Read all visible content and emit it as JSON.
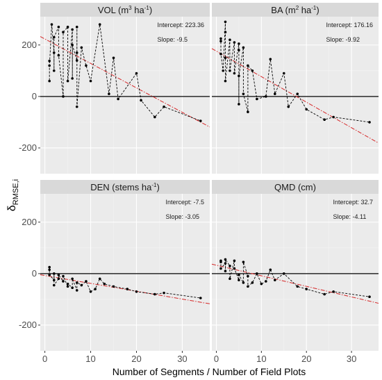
{
  "colors": {
    "panel_background": "#ebebeb",
    "strip_background": "#d9d9d9",
    "grid_major": "#ffffff",
    "grid_minor": "#f4f4f4",
    "data_points": "#000000",
    "data_line": "#000000",
    "reference_line": "#000000",
    "trend_line": "#d62728"
  },
  "axes": {
    "xlabel": "Number of Segments / Number of Field Plots",
    "ylabel_main": "δ",
    "ylabel_sub": "RMSE,i",
    "x_ticks": [
      0,
      10,
      20,
      30
    ],
    "y_ticks": [
      -200,
      0,
      200
    ],
    "xlim": [
      -1,
      36
    ],
    "ylim": [
      -300,
      310
    ]
  },
  "chart_data": [
    {
      "type": "scatter",
      "title_parts": [
        "VOL (m",
        "3",
        " ha",
        "-1",
        ")"
      ],
      "intercept_text": "Intercept: 223.36",
      "slope_text": "Slope: -9.5",
      "trend": {
        "intercept": 223.36,
        "slope": -9.5
      },
      "points": [
        [
          1,
          138
        ],
        [
          1,
          60
        ],
        [
          1,
          120
        ],
        [
          1.5,
          280
        ],
        [
          2,
          170
        ],
        [
          2,
          100
        ],
        [
          2,
          230
        ],
        [
          3,
          270
        ],
        [
          3,
          160
        ],
        [
          4,
          0
        ],
        [
          4,
          250
        ],
        [
          5,
          270
        ],
        [
          5,
          60
        ],
        [
          6,
          260
        ],
        [
          6,
          70
        ],
        [
          6,
          200
        ],
        [
          7,
          140
        ],
        [
          7,
          270
        ],
        [
          7,
          170
        ],
        [
          7,
          -40
        ],
        [
          8,
          190
        ],
        [
          9,
          120
        ],
        [
          10,
          60
        ],
        [
          12,
          280
        ],
        [
          14,
          10
        ],
        [
          15,
          150
        ],
        [
          16,
          -10
        ],
        [
          20,
          90
        ],
        [
          21,
          -15
        ],
        [
          24,
          -80
        ],
        [
          26,
          -40
        ],
        [
          34,
          -95
        ]
      ]
    },
    {
      "type": "scatter",
      "title_parts": [
        "BA (m",
        "2",
        " ha",
        "-1",
        ")"
      ],
      "intercept_text": "Intercept: 176.16",
      "slope_text": "Slope: -9.92",
      "trend": {
        "intercept": 176.16,
        "slope": -9.92
      },
      "points": [
        [
          1,
          225
        ],
        [
          1,
          215
        ],
        [
          1,
          165
        ],
        [
          1.5,
          100
        ],
        [
          2,
          290
        ],
        [
          2,
          250
        ],
        [
          2,
          150
        ],
        [
          2,
          60
        ],
        [
          3,
          220
        ],
        [
          3,
          100
        ],
        [
          4,
          210
        ],
        [
          4,
          90
        ],
        [
          5,
          205
        ],
        [
          5,
          180
        ],
        [
          5,
          -30
        ],
        [
          5,
          80
        ],
        [
          6,
          190
        ],
        [
          6,
          10
        ],
        [
          7,
          -60
        ],
        [
          7,
          120
        ],
        [
          8,
          100
        ],
        [
          9,
          -10
        ],
        [
          11,
          0
        ],
        [
          12,
          145
        ],
        [
          13,
          10
        ],
        [
          15,
          90
        ],
        [
          16,
          -40
        ],
        [
          18,
          10
        ],
        [
          20,
          -50
        ],
        [
          24,
          -90
        ],
        [
          26,
          -80
        ],
        [
          34,
          -100
        ]
      ]
    },
    {
      "type": "scatter",
      "title_parts": [
        "DEN (stems ha",
        "-1",
        ")"
      ],
      "intercept_text": "Intercept: -7.5",
      "slope_text": "Slope: -3.05",
      "trend": {
        "intercept": -7.5,
        "slope": -3.05
      },
      "points": [
        [
          1,
          25
        ],
        [
          1,
          15
        ],
        [
          1,
          -5
        ],
        [
          2,
          -25
        ],
        [
          2,
          0
        ],
        [
          2,
          -45
        ],
        [
          3,
          -20
        ],
        [
          3,
          -5
        ],
        [
          4,
          -30
        ],
        [
          4,
          -10
        ],
        [
          5,
          -50
        ],
        [
          5,
          -40
        ],
        [
          6,
          -55
        ],
        [
          6,
          -20
        ],
        [
          7,
          -65
        ],
        [
          7,
          -35
        ],
        [
          8,
          -45
        ],
        [
          9,
          -30
        ],
        [
          10,
          -70
        ],
        [
          11,
          -60
        ],
        [
          12,
          -20
        ],
        [
          13,
          -40
        ],
        [
          15,
          -50
        ],
        [
          18,
          -60
        ],
        [
          20,
          -70
        ],
        [
          24,
          -80
        ],
        [
          26,
          -75
        ],
        [
          34,
          -95
        ]
      ]
    },
    {
      "type": "scatter",
      "title_parts": [
        "QMD (cm)"
      ],
      "intercept_text": "Intercept: 32.7",
      "slope_text": "Slope: -4.11",
      "trend": {
        "intercept": 32.7,
        "slope": -4.11
      },
      "points": [
        [
          1,
          50
        ],
        [
          1,
          45
        ],
        [
          1,
          20
        ],
        [
          2,
          40
        ],
        [
          2,
          10
        ],
        [
          2,
          55
        ],
        [
          3,
          30
        ],
        [
          3,
          -20
        ],
        [
          4,
          50
        ],
        [
          4,
          20
        ],
        [
          5,
          -25
        ],
        [
          5,
          -5
        ],
        [
          6,
          -35
        ],
        [
          6,
          45
        ],
        [
          7,
          -10
        ],
        [
          7,
          -50
        ],
        [
          8,
          -35
        ],
        [
          9,
          0
        ],
        [
          10,
          -40
        ],
        [
          11,
          -30
        ],
        [
          12,
          15
        ],
        [
          13,
          -25
        ],
        [
          15,
          0
        ],
        [
          18,
          -50
        ],
        [
          20,
          -60
        ],
        [
          24,
          -80
        ],
        [
          26,
          -70
        ],
        [
          34,
          -90
        ]
      ]
    }
  ]
}
